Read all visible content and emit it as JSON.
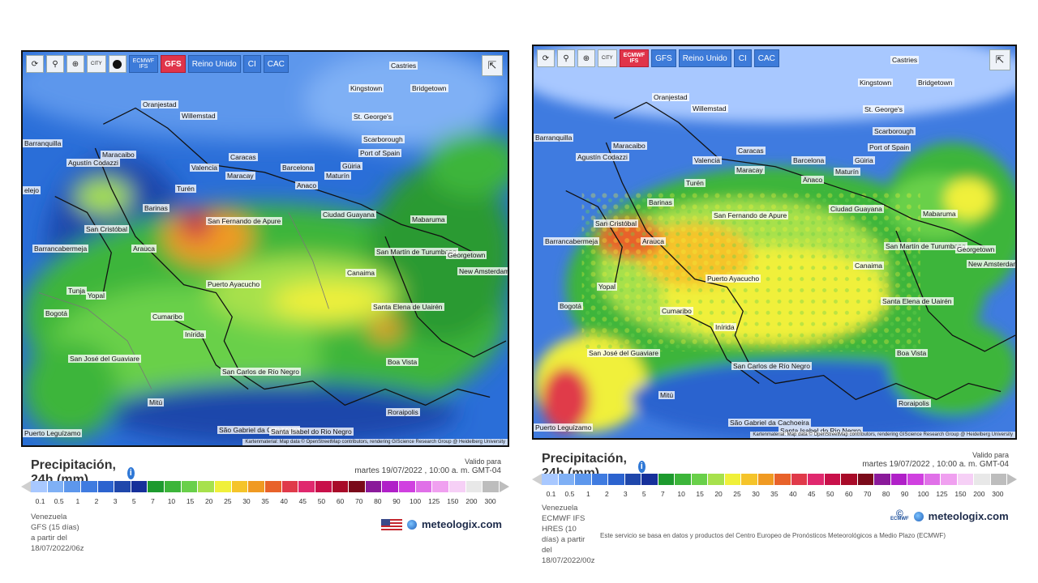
{
  "scale_colors": [
    "#a8c8ff",
    "#7fb0f5",
    "#5d97ec",
    "#3f7be0",
    "#2c63cf",
    "#1f47ab",
    "#16309a",
    "#1d9a2e",
    "#3cb53a",
    "#69d04a",
    "#a7e14c",
    "#f0f03a",
    "#f5c42a",
    "#f09a22",
    "#e8622a",
    "#e03a4a",
    "#e0286e",
    "#c8104a",
    "#a80a28",
    "#7a0a1a",
    "#8a1a9a",
    "#b020c8",
    "#d040e0",
    "#e070e8",
    "#f0a0f0",
    "#f6d0f6",
    "#e8e8e8",
    "#bdbdbd"
  ],
  "ticks": [
    "0.1",
    "0.5",
    "1",
    "2",
    "3",
    "5",
    "7",
    "10",
    "15",
    "20",
    "25",
    "30",
    "35",
    "40",
    "45",
    "50",
    "60",
    "70",
    "80",
    "90",
    "100",
    "125",
    "150",
    "200",
    "300"
  ],
  "left": {
    "toolbar": {
      "refresh_icon": "⟳",
      "locate_icon": "⚲",
      "zoom_icon": "⊕",
      "city": "CITY",
      "ecmwf_line1": "ECMWF",
      "ecmwf_line2": "IFS",
      "gfs": "GFS",
      "reino_unido": "Reino Unido",
      "ci": "CI",
      "cac": "CAC"
    },
    "attribution": "Kartenmaterial: Map data © OpenStreetMap contributors, rendering GIScience Research Group @ Heidelberg University",
    "places": [
      {
        "name": "Castries"
      },
      {
        "name": "Kingstown"
      },
      {
        "name": "Bridgetown"
      },
      {
        "name": "Oranjestad"
      },
      {
        "name": "St. George's"
      },
      {
        "name": "Willemstad"
      },
      {
        "name": "Barranquilla"
      },
      {
        "name": "Scarborough"
      },
      {
        "name": "Maracaibo"
      },
      {
        "name": "Caracas"
      },
      {
        "name": "Port of Spain"
      },
      {
        "name": "Valencia"
      },
      {
        "name": "Barcelona"
      },
      {
        "name": "Agustín Codazzi"
      },
      {
        "name": "Maracay"
      },
      {
        "name": "Güiria"
      },
      {
        "name": "Maturín"
      },
      {
        "name": "Anaco"
      },
      {
        "name": "Turén"
      },
      {
        "name": "Barinas"
      },
      {
        "name": "Ciudad Guayana"
      },
      {
        "name": "San Fernando de Apure"
      },
      {
        "name": "San Cristóbal"
      },
      {
        "name": "Mabaruma"
      },
      {
        "name": "Arauca"
      },
      {
        "name": "Barrancabermeja"
      },
      {
        "name": "San Martín de Turumbang"
      },
      {
        "name": "Georgetown"
      },
      {
        "name": "New Amsterdam"
      },
      {
        "name": "Canaima"
      },
      {
        "name": "Puerto Ayacucho"
      },
      {
        "name": "Tunja"
      },
      {
        "name": "Yopal"
      },
      {
        "name": "Bogotá"
      },
      {
        "name": "Cumaribo"
      },
      {
        "name": "Santa Elena de Uairén"
      },
      {
        "name": "Inírida"
      },
      {
        "name": "Boa Vista"
      },
      {
        "name": "San José del Guaviare"
      },
      {
        "name": "San Carlos de Río Negro"
      },
      {
        "name": "Mitú"
      },
      {
        "name": "Roraipolis"
      },
      {
        "name": "São Gabriel da Cachoeira"
      },
      {
        "name": "Santa Isabel do Rio Negro"
      },
      {
        "name": "Puerto Leguízamo"
      },
      {
        "name": "elejo"
      }
    ],
    "title": "Precipitación, 24h (mm)",
    "valid_label": "Valido para",
    "valid_date": "martes 19/07/2022 , 10:00 a. m. GMT-04",
    "region": "Venezuela",
    "model": "GFS (15 días) a partir del 18/07/2022/06z",
    "brand": "meteologix.com"
  },
  "right": {
    "toolbar": {
      "refresh_icon": "⟳",
      "locate_icon": "⚲",
      "zoom_icon": "⊕",
      "city": "CITY",
      "ecmwf_line1": "ECMWF",
      "ecmwf_line2": "IFS",
      "gfs": "GFS",
      "reino_unido": "Reino Unido",
      "ci": "CI",
      "cac": "CAC"
    },
    "attribution": "Kartenmaterial: Map data © OpenStreetMap contributors, rendering GIScience Research Group @ Heidelberg University",
    "places": [
      {
        "name": "Castries"
      },
      {
        "name": "Kingstown"
      },
      {
        "name": "Bridgetown"
      },
      {
        "name": "Oranjestad"
      },
      {
        "name": "St. George's"
      },
      {
        "name": "Willemstad"
      },
      {
        "name": "Barranquilla"
      },
      {
        "name": "Scarborough"
      },
      {
        "name": "Maracaibo"
      },
      {
        "name": "Caracas"
      },
      {
        "name": "Port of Spain"
      },
      {
        "name": "Valencia"
      },
      {
        "name": "Barcelona"
      },
      {
        "name": "Güiria"
      },
      {
        "name": "Agustín Codazzi"
      },
      {
        "name": "Maracay"
      },
      {
        "name": "Maturín"
      },
      {
        "name": "Anaco"
      },
      {
        "name": "Turén"
      },
      {
        "name": "Barinas"
      },
      {
        "name": "Ciudad Guayana"
      },
      {
        "name": "San Fernando de Apure"
      },
      {
        "name": "San Cristóbal"
      },
      {
        "name": "Mabaruma"
      },
      {
        "name": "Arauca"
      },
      {
        "name": "Barrancabermeja"
      },
      {
        "name": "San Martín de Turumbang"
      },
      {
        "name": "Georgetown"
      },
      {
        "name": "New Amsterdam"
      },
      {
        "name": "Canaima"
      },
      {
        "name": "Puerto Ayacucho"
      },
      {
        "name": "Yopal"
      },
      {
        "name": "Bogotá"
      },
      {
        "name": "Cumaribo"
      },
      {
        "name": "Santa Elena de Uairén"
      },
      {
        "name": "Inírida"
      },
      {
        "name": "Boa Vista"
      },
      {
        "name": "San José del Guaviare"
      },
      {
        "name": "San Carlos de Río Negro"
      },
      {
        "name": "Mitú"
      },
      {
        "name": "Roraipolis"
      },
      {
        "name": "São Gabriel da Cachoeira"
      },
      {
        "name": "Santa Isabel do Rio Negro"
      },
      {
        "name": "Puerto Leguízamo"
      }
    ],
    "title": "Precipitación, 24h (mm)",
    "valid_label": "Valido para",
    "valid_date": "martes 19/07/2022 , 10:00 a. m. GMT-04",
    "region": "Venezuela",
    "model": "ECMWF IFS HRES (10 días) a partir del 18/07/2022/00z",
    "brand": "meteologix.com",
    "ecmwf_logo": "ECMWF",
    "disclaimer": "Este servicio se basa en datos y productos del Centro Europeo de Pronósticos Meteorológicos a Medio Plazo (ECMWF)"
  }
}
